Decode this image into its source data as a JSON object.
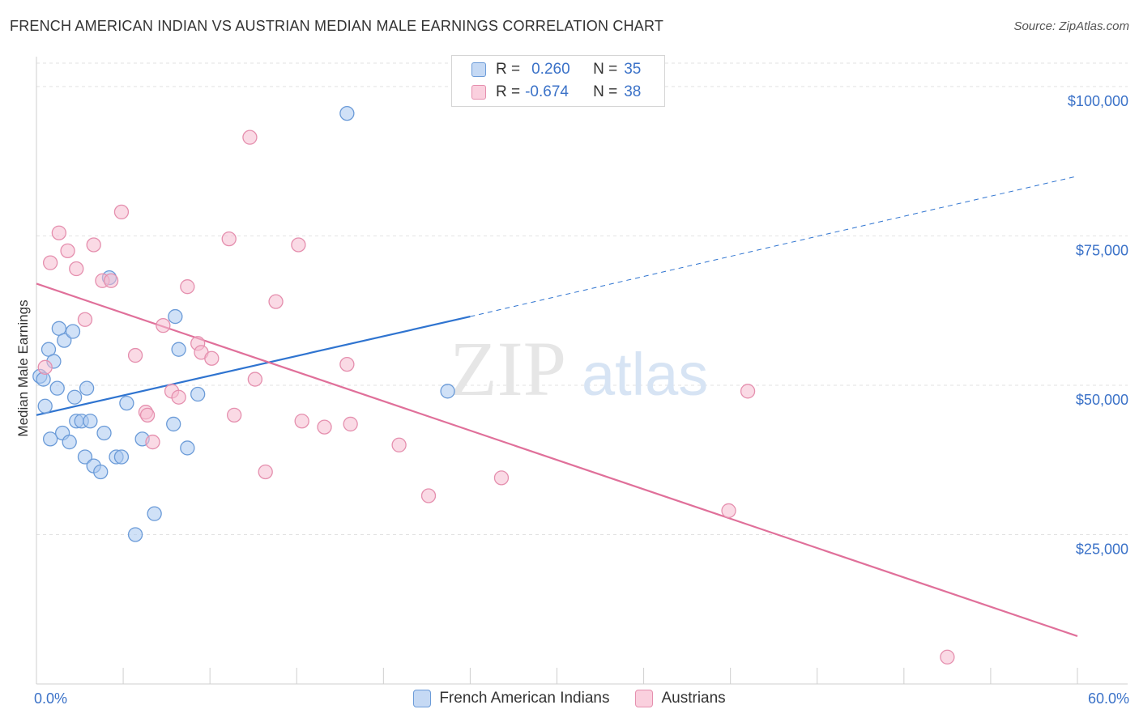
{
  "title": "FRENCH AMERICAN INDIAN VS AUSTRIAN MEDIAN MALE EARNINGS CORRELATION CHART",
  "source": "Source: ZipAtlas.com",
  "watermark": {
    "zip": "ZIP",
    "atlas": "atlas"
  },
  "legend": {
    "rows": [
      {
        "r_label": "R =",
        "r_value": "0.260",
        "n_label": "N =",
        "n_value": "35"
      },
      {
        "r_label": "R =",
        "r_value": "-0.674",
        "n_label": "N =",
        "n_value": "38"
      }
    ]
  },
  "bottom_legend": [
    "French American Indians",
    "Austrians"
  ],
  "colors": {
    "blue_fill": "#a9c8f0",
    "blue_stroke": "#6b9bd8",
    "blue_line": "#2f74d0",
    "pink_fill": "#f6bcd0",
    "pink_stroke": "#e58fae",
    "pink_line": "#e0709a",
    "tick_text": "#3b72c8",
    "grid": "#e2e2e2"
  },
  "chart_data": {
    "type": "scatter",
    "title": "FRENCH AMERICAN INDIAN VS AUSTRIAN MEDIAN MALE EARNINGS CORRELATION CHART",
    "xlabel": "",
    "ylabel": "Median Male Earnings",
    "xlim": [
      0,
      60
    ],
    "ylim": [
      0,
      105000
    ],
    "x_tick_labels": [
      "0.0%",
      "60.0%"
    ],
    "y_ticks": [
      {
        "value": 25000,
        "label": "$25,000"
      },
      {
        "value": 50000,
        "label": "$50,000"
      },
      {
        "value": 75000,
        "label": "$75,000"
      },
      {
        "value": 100000,
        "label": "$100,000"
      }
    ],
    "grid": true,
    "legend_position": "top-center",
    "series": [
      {
        "name": "French American Indians",
        "r": 0.26,
        "n": 35,
        "trend": {
          "x0": 0,
          "y0": 45000,
          "x1": 25,
          "y1": 61500,
          "dash_to_x": 60,
          "dash_to_y": 85000
        },
        "points": [
          [
            0.2,
            51500
          ],
          [
            0.4,
            51000
          ],
          [
            0.5,
            46500
          ],
          [
            0.7,
            56000
          ],
          [
            0.8,
            41000
          ],
          [
            1.0,
            54000
          ],
          [
            1.2,
            49500
          ],
          [
            1.3,
            59500
          ],
          [
            1.5,
            42000
          ],
          [
            1.6,
            57500
          ],
          [
            1.9,
            40500
          ],
          [
            2.1,
            59000
          ],
          [
            2.2,
            48000
          ],
          [
            2.3,
            44000
          ],
          [
            2.6,
            44000
          ],
          [
            2.8,
            38000
          ],
          [
            2.9,
            49500
          ],
          [
            3.1,
            44000
          ],
          [
            3.3,
            36500
          ],
          [
            3.7,
            35500
          ],
          [
            3.9,
            42000
          ],
          [
            4.2,
            68000
          ],
          [
            4.6,
            38000
          ],
          [
            4.9,
            38000
          ],
          [
            5.2,
            47000
          ],
          [
            5.7,
            25000
          ],
          [
            6.1,
            41000
          ],
          [
            6.8,
            28500
          ],
          [
            7.9,
            43500
          ],
          [
            8.0,
            61500
          ],
          [
            8.2,
            56000
          ],
          [
            8.7,
            39500
          ],
          [
            9.3,
            48500
          ],
          [
            17.9,
            95500
          ],
          [
            23.7,
            49000
          ]
        ]
      },
      {
        "name": "Austrians",
        "r": -0.674,
        "n": 38,
        "trend": {
          "x0": 0,
          "y0": 67000,
          "x1": 60,
          "y1": 8000
        },
        "points": [
          [
            0.5,
            53000
          ],
          [
            0.8,
            70500
          ],
          [
            1.3,
            75500
          ],
          [
            1.8,
            72500
          ],
          [
            2.3,
            69500
          ],
          [
            2.8,
            61000
          ],
          [
            3.3,
            73500
          ],
          [
            3.8,
            67500
          ],
          [
            4.3,
            67500
          ],
          [
            4.9,
            79000
          ],
          [
            5.7,
            55000
          ],
          [
            6.3,
            45500
          ],
          [
            6.4,
            45000
          ],
          [
            6.7,
            40500
          ],
          [
            7.3,
            60000
          ],
          [
            7.8,
            49000
          ],
          [
            8.2,
            48000
          ],
          [
            8.7,
            66500
          ],
          [
            9.3,
            57000
          ],
          [
            9.5,
            55500
          ],
          [
            10.1,
            54500
          ],
          [
            11.1,
            74500
          ],
          [
            11.4,
            45000
          ],
          [
            12.3,
            91500
          ],
          [
            12.6,
            51000
          ],
          [
            13.2,
            35500
          ],
          [
            13.8,
            64000
          ],
          [
            15.1,
            73500
          ],
          [
            15.3,
            44000
          ],
          [
            16.6,
            43000
          ],
          [
            17.9,
            53500
          ],
          [
            18.1,
            43500
          ],
          [
            20.9,
            40000
          ],
          [
            22.6,
            31500
          ],
          [
            26.8,
            34500
          ],
          [
            39.9,
            29000
          ],
          [
            41.0,
            49000
          ],
          [
            52.5,
            4500
          ]
        ]
      }
    ]
  }
}
